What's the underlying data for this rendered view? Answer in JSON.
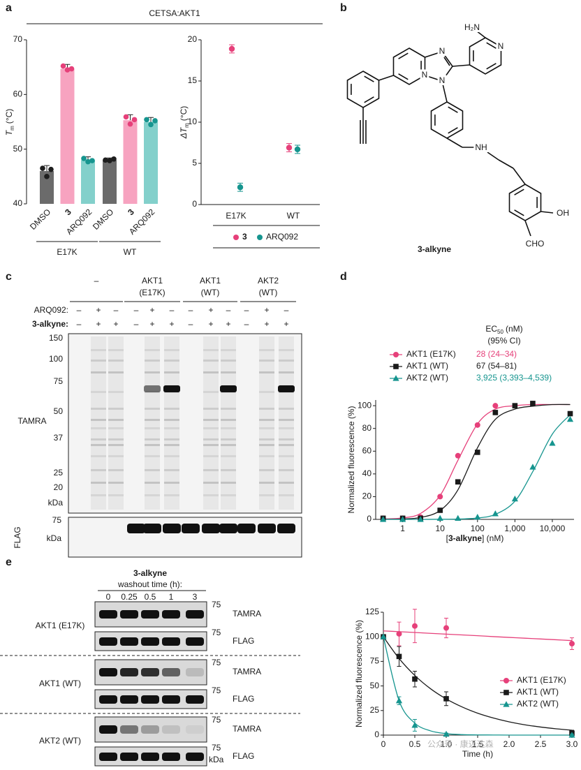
{
  "panels": [
    "a",
    "b",
    "c",
    "d",
    "e"
  ],
  "chart_data": [
    {
      "type": "bar",
      "title": "CETSA:AKT1",
      "categories": [
        "DMSO",
        "3",
        "ARQ092",
        "DMSO",
        "3",
        "ARQ092"
      ],
      "category_bold": [
        false,
        true,
        false,
        false,
        true,
        false
      ],
      "groups": [
        "E17K",
        "WT"
      ],
      "values": [
        46,
        64.7,
        48,
        48,
        55.3,
        55
      ],
      "errors": [
        1,
        0.8,
        0.6,
        0.4,
        1,
        0.8
      ],
      "points": [
        [
          46.5,
          45,
          46.3
        ],
        [
          65.2,
          64.5,
          64.7
        ],
        [
          48.3,
          47.7,
          47.9
        ],
        [
          48,
          47.9,
          48.2
        ],
        [
          55.9,
          54.6,
          55.4
        ],
        [
          55.4,
          54.5,
          55.2
        ]
      ],
      "colors": [
        "#6b6b6b",
        "#f7a3c0",
        "#83d0cb",
        "#6b6b6b",
        "#f7a3c0",
        "#83d0cb"
      ],
      "point_colors": [
        "#1e1e1e",
        "#e6407a",
        "#16958f",
        "#1e1e1e",
        "#e6407a",
        "#16958f"
      ],
      "ylim": [
        40,
        70
      ],
      "yticks": [
        40,
        50,
        60,
        70
      ],
      "y_label": [
        "T",
        "m",
        "(°C)"
      ]
    },
    {
      "type": "scatter",
      "categories": [
        "E17K",
        "WT"
      ],
      "series": [
        {
          "name": "3",
          "color": "#e6407a",
          "values": [
            18.9,
            6.9
          ],
          "errors": [
            0.5,
            0.5
          ]
        },
        {
          "name": "ARQ092",
          "color": "#16958f",
          "values": [
            2.1,
            6.7
          ],
          "errors": [
            0.5,
            0.5
          ]
        }
      ],
      "ylim": [
        0,
        20
      ],
      "yticks": [
        0,
        5,
        10,
        15,
        20
      ],
      "y_label": [
        "ΔT",
        "m",
        "(°C)"
      ]
    },
    {
      "type": "line",
      "log_x": true,
      "legend": "top",
      "x": [
        0.3,
        1,
        3,
        10,
        30,
        100,
        300,
        1000,
        3000,
        10000,
        30000
      ],
      "xlim": [
        0.19,
        38000
      ],
      "xticks": [
        1,
        10,
        100,
        {
          "value": 1000,
          "label": "1,000"
        },
        {
          "value": 10000,
          "label": "10,000"
        }
      ],
      "ylim": [
        0,
        105
      ],
      "yticks": [
        0,
        20,
        40,
        60,
        80,
        100
      ],
      "x_label": [
        "[",
        "3-alkyne",
        "] (nM)"
      ],
      "y_label": "Normalized fluorescence (%)",
      "ec50_header": [
        "EC",
        "50",
        "(nM)"
      ],
      "ci_header": "(95% CI)",
      "series": [
        {
          "name": "AKT1 (E17K)",
          "color": "#e6407a",
          "marker": "circle",
          "ec50": "28 (24–34)",
          "values": [
            1,
            1,
            2,
            20,
            56,
            83,
            100,
            null,
            null,
            null,
            null
          ],
          "fit": [
            0.3,
            1.3,
            5.2,
            21,
            52,
            84,
            97,
            100,
            101,
            101,
            101
          ]
        },
        {
          "name": "AKT1 (WT)",
          "color": "#1a1a1a",
          "marker": "square",
          "ec50": "67 (54–81)",
          "values": [
            1,
            1,
            1,
            8,
            33,
            59,
            94,
            100,
            102,
            null,
            93
          ],
          "fit": [
            0.1,
            0.4,
            1.7,
            7.8,
            26,
            63,
            88,
            97,
            99.6,
            101,
            101
          ]
        },
        {
          "name": "AKT2 (WT)",
          "color": "#16958f",
          "marker": "triangle",
          "ec50": "3,925 (3,393–4,539)",
          "values": [
            0,
            0,
            0,
            1,
            1,
            2,
            5,
            18,
            46,
            67,
            88
          ],
          "fit": [
            0,
            0,
            0,
            0.1,
            0.3,
            1.2,
            4.4,
            16,
            42,
            75,
            92
          ]
        }
      ]
    },
    {
      "type": "line",
      "legend": "lower right",
      "x": [
        0,
        0.25,
        0.5,
        1,
        3
      ],
      "fit_x": [
        0,
        0.25,
        0.5,
        0.75,
        1,
        1.25,
        1.5,
        1.75,
        2,
        2.25,
        2.5,
        2.75,
        3
      ],
      "xlim": [
        0,
        3
      ],
      "xticks": [
        0,
        0.5,
        {
          "value": 1,
          "label": "1.0"
        },
        1.5,
        {
          "value": 2,
          "label": "2.0"
        },
        2.5,
        {
          "value": 3,
          "label": "3.0"
        }
      ],
      "ylim": [
        0,
        125
      ],
      "yticks": [
        0,
        25,
        50,
        75,
        100,
        125
      ],
      "x_label": "Time (h)",
      "y_label": "Normalized fluorescence (%)",
      "series": [
        {
          "name": "AKT1 (E17K)",
          "color": "#e6407a",
          "marker": "circle",
          "values": [
            100,
            103,
            111,
            109,
            93
          ],
          "errors": [
            0,
            12,
            17,
            10,
            6
          ],
          "fit": [
            106,
            105.2,
            104.4,
            103.5,
            102.7,
            101.9,
            101.1,
            100.2,
            99.4,
            98.6,
            97.8,
            97,
            96.1
          ]
        },
        {
          "name": "AKT1 (WT)",
          "color": "#1a1a1a",
          "marker": "square",
          "values": [
            100,
            80,
            57,
            37,
            2
          ],
          "errors": [
            0,
            10,
            8,
            7,
            3
          ],
          "fit": [
            100,
            77.9,
            60.7,
            47.2,
            36.8,
            28.7,
            22.3,
            17.4,
            13.5,
            10.5,
            8.2,
            6.4,
            5
          ]
        },
        {
          "name": "AKT2 (WT)",
          "color": "#16958f",
          "marker": "triangle",
          "values": [
            100,
            35,
            10,
            1,
            0
          ],
          "errors": [
            0,
            4,
            6,
            1,
            1
          ],
          "fit": [
            100,
            35,
            12.2,
            4.3,
            1.5,
            0.5,
            0.2,
            0.1,
            0,
            0,
            0,
            0,
            0
          ]
        }
      ]
    }
  ],
  "structure": {
    "name": "3-alkyne",
    "atoms": [
      "H₂N",
      "N",
      "N",
      "N",
      "N",
      "NH",
      "OH",
      "CHO"
    ]
  },
  "gel": {
    "groups": [
      [
        "–"
      ],
      [
        "AKT1",
        "(E17K)"
      ],
      [
        "AKT1",
        "(WT)"
      ],
      [
        "AKT2",
        "(WT)"
      ]
    ],
    "row_labels": [
      "ARQ092:",
      "3-alkyne:"
    ],
    "rows": [
      [
        "–",
        "+",
        "–",
        "–",
        "+",
        "–",
        "–",
        "+",
        "–",
        "–",
        "+",
        "–"
      ],
      [
        "–",
        "+",
        "+",
        "–",
        "+",
        "+",
        "–",
        "+",
        "+",
        "–",
        "+",
        "+"
      ]
    ],
    "markers": [
      150,
      100,
      75,
      50,
      37,
      25,
      20
    ],
    "unit": "kDa",
    "tamra_label": "TAMRA",
    "flag_label": "FLAG",
    "flag_marker": 75
  },
  "blot": {
    "title": "3-alkyne",
    "subtitle": "washout time (h):",
    "times": [
      0,
      0.25,
      0.5,
      1,
      3
    ],
    "rows": [
      "AKT1 (E17K)",
      "AKT1 (WT)",
      "AKT2 (WT)"
    ],
    "tamra_label": "TAMRA",
    "flag_label": "FLAG",
    "marker": 75,
    "unit": "kDa"
  },
  "watermark": "公众号 · 康迈达森"
}
